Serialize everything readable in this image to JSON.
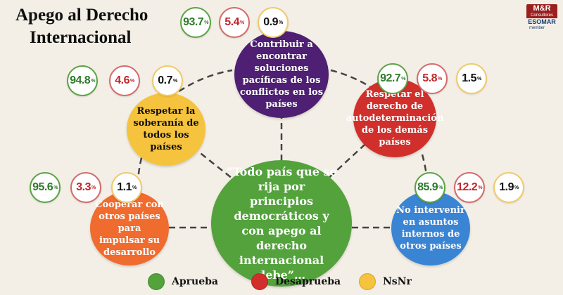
{
  "title": {
    "line1": "Apego al Derecho",
    "line2": "Internacional"
  },
  "logo": {
    "brand": "M&R",
    "sub": "Consultores",
    "org": "ESOMAR",
    "member": "member"
  },
  "colors": {
    "green": "#53a23c",
    "red": "#d12f2b",
    "yellow": "#f6c33e",
    "purple": "#4e1f72",
    "orange": "#f06b2e",
    "blue": "#3a84d4"
  },
  "center_text": "“Todo país que se rija por principios democráticos y con apego al derecho internacional debe”…",
  "percent_sign": "%",
  "topics": [
    {
      "text": "Contribuir a encontrar soluciones pacíficas de los conflictos en los países",
      "aprueba": "93.7",
      "desaprueba": "5.4",
      "nsnr": "0.9"
    },
    {
      "text": "Respetar la soberanía de todos los países",
      "aprueba": "94.8",
      "desaprueba": "4.6",
      "nsnr": "0.7"
    },
    {
      "text": "Respetar el derecho de autodeterminación de los demás países",
      "aprueba": "92.7",
      "desaprueba": "5.8",
      "nsnr": "1.5"
    },
    {
      "text": "Cooperar con otros países para impulsar su desarrollo",
      "aprueba": "95.6",
      "desaprueba": "3.3",
      "nsnr": "1.1"
    },
    {
      "text": "No intervenir en asuntos internos de otros países",
      "aprueba": "85.9",
      "desaprueba": "12.2",
      "nsnr": "1.9"
    }
  ],
  "legend": [
    {
      "label": "Aprueba",
      "color": "#53a23c"
    },
    {
      "label": "Desaprueba",
      "color": "#d12f2b"
    },
    {
      "label": "NsNr",
      "color": "#f6c33e"
    }
  ]
}
